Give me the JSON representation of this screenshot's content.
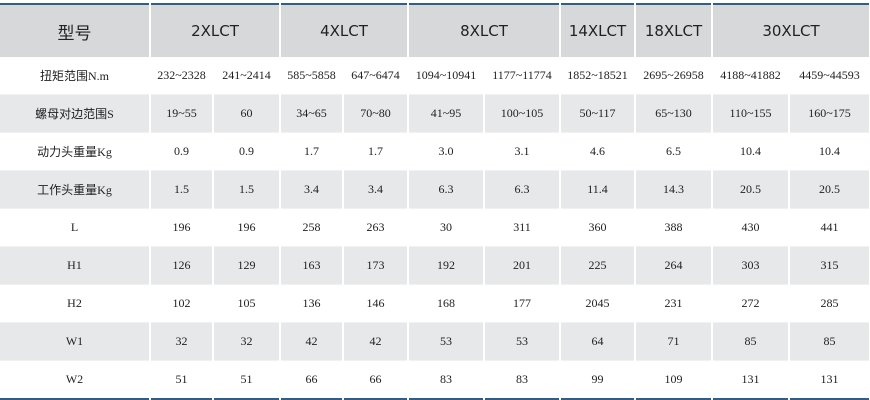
{
  "table": {
    "title": "型号",
    "models": [
      "2XLCT",
      "4XLCT",
      "8XLCT",
      "14XLCT",
      "18XLCT",
      "30XLCT"
    ],
    "rows": [
      [
        "扭矩范围N.m",
        "232~2328",
        "241~2414",
        "585~5858",
        "647~6474",
        "1094~10941",
        "1177~11774",
        "1852~18521",
        "2695~26958",
        "4188~41882",
        "4459~44593"
      ],
      [
        "螺母对边范围S",
        "19~55",
        "60",
        "34~65",
        "70~80",
        "41~95",
        "100~105",
        "50~117",
        "65~130",
        "110~155",
        "160~175"
      ],
      [
        "动力头重量Kg",
        "0.9",
        "0.9",
        "1.7",
        "1.7",
        "3.0",
        "3.1",
        "4.6",
        "6.5",
        "10.4",
        "10.4"
      ],
      [
        "工作头重量Kg",
        "1.5",
        "1.5",
        "3.4",
        "3.4",
        "6.3",
        "6.3",
        "11.4",
        "14.3",
        "20.5",
        "20.5"
      ],
      [
        "L",
        "196",
        "196",
        "258",
        "263",
        "30",
        "311",
        "360",
        "388",
        "430",
        "441"
      ],
      [
        "H1",
        "126",
        "129",
        "163",
        "173",
        "192",
        "201",
        "225",
        "264",
        "303",
        "315"
      ],
      [
        "H2",
        "102",
        "105",
        "136",
        "146",
        "168",
        "177",
        "2045",
        "231",
        "272",
        "285"
      ],
      [
        "W1",
        "32",
        "32",
        "42",
        "42",
        "53",
        "53",
        "64",
        "71",
        "85",
        "85"
      ],
      [
        "W2",
        "51",
        "51",
        "66",
        "66",
        "83",
        "83",
        "99",
        "109",
        "131",
        "131"
      ]
    ]
  }
}
